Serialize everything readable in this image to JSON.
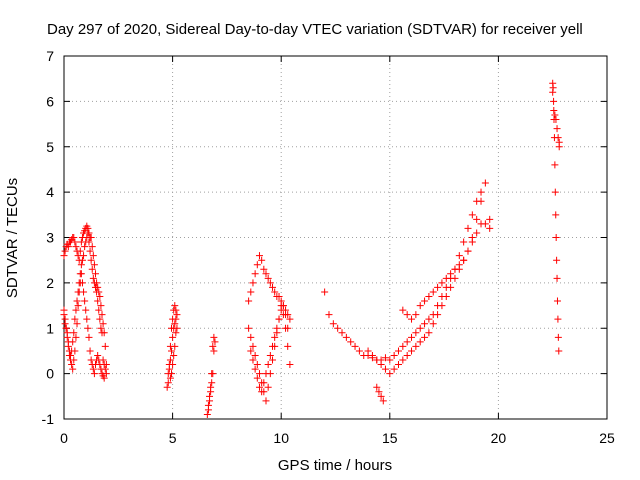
{
  "chart_data": {
    "type": "scatter",
    "title": "Day 297 of 2020, Sidereal Day-to-day VTEC variation (SDTVAR) for receiver yell",
    "xlabel": "GPS time / hours",
    "ylabel": "SDTVAR / TECUs",
    "xlim": [
      0,
      25
    ],
    "ylim": [
      -1,
      7
    ],
    "xticks": [
      0,
      5,
      10,
      15,
      20,
      25
    ],
    "yticks": [
      -1,
      0,
      1,
      2,
      3,
      4,
      5,
      6,
      7
    ],
    "xtick_labels": [
      "0",
      "5",
      "10",
      "15",
      "20",
      "25"
    ],
    "ytick_labels": [
      "-1",
      "0",
      "1",
      "2",
      "3",
      "4",
      "5",
      "6",
      "7"
    ],
    "grid": true,
    "legend": "none",
    "marker": "+",
    "color": "#ff0000",
    "series": [
      {
        "name": "SDTVAR",
        "x": [
          0.0,
          0.05,
          0.1,
          0.15,
          0.2,
          0.25,
          0.3,
          0.35,
          0.4,
          0.45,
          0.5,
          0.55,
          0.6,
          0.65,
          0.7,
          0.75,
          0.8,
          0.85,
          0.9,
          0.95,
          1.0,
          1.05,
          1.1,
          1.15,
          1.2,
          1.25,
          1.3,
          1.35,
          1.4,
          1.45,
          1.5,
          1.55,
          1.6,
          1.65,
          1.7,
          1.75,
          1.8,
          1.85,
          1.9,
          1.95,
          0.0,
          0.05,
          0.1,
          0.15,
          0.2,
          0.25,
          0.3,
          0.35,
          0.4,
          0.45,
          0.5,
          0.55,
          0.6,
          0.65,
          0.7,
          0.75,
          0.8,
          0.85,
          0.9,
          0.95,
          1.0,
          1.05,
          1.1,
          1.15,
          1.2,
          1.25,
          1.3,
          1.35,
          1.4,
          1.45,
          1.5,
          1.55,
          1.6,
          1.65,
          1.7,
          1.75,
          1.8,
          1.85,
          0.0,
          0.05,
          0.1,
          0.15,
          0.2,
          0.25,
          0.3,
          0.35,
          0.4,
          0.45,
          0.5,
          0.55,
          0.6,
          0.65,
          0.7,
          0.75,
          0.8,
          0.85,
          0.9,
          0.95,
          1.0,
          1.05,
          1.1,
          1.15,
          1.2,
          1.25,
          1.3,
          1.35,
          1.4,
          1.45,
          1.5,
          1.55,
          1.6,
          1.65,
          1.7,
          1.75,
          1.8,
          1.85,
          1.9,
          1.95,
          4.75,
          4.8,
          4.85,
          4.9,
          4.95,
          5.0,
          5.05,
          5.1,
          5.15,
          5.2,
          4.8,
          4.85,
          4.9,
          4.95,
          5.0,
          5.05,
          5.1,
          5.15,
          5.2,
          4.9,
          4.95,
          5.0,
          5.05,
          5.1,
          5.15,
          6.6,
          6.65,
          6.7,
          6.75,
          6.8,
          6.85,
          6.9,
          6.95,
          6.65,
          6.7,
          6.75,
          6.8,
          6.85,
          6.9,
          8.5,
          8.6,
          8.7,
          8.8,
          8.9,
          9.0,
          9.1,
          9.2,
          9.3,
          9.4,
          9.5,
          9.6,
          9.7,
          9.8,
          9.9,
          10.0,
          10.1,
          10.2,
          10.3,
          10.4,
          8.5,
          8.6,
          8.7,
          8.8,
          8.9,
          9.0,
          9.1,
          9.2,
          9.3,
          9.4,
          9.5,
          9.6,
          9.7,
          9.8,
          9.9,
          10.0,
          10.1,
          10.2,
          10.3,
          10.4,
          8.6,
          8.7,
          8.8,
          8.9,
          9.0,
          9.1,
          9.2,
          9.3,
          9.4,
          9.5,
          9.6,
          9.7,
          9.8,
          9.9,
          10.0,
          10.1,
          10.2,
          10.3,
          12.0,
          12.2,
          12.4,
          12.6,
          12.8,
          13.0,
          13.2,
          13.4,
          13.6,
          13.8,
          14.0,
          14.2,
          14.4,
          14.6,
          14.8,
          15.0,
          15.2,
          15.4,
          15.6,
          15.8,
          16.0,
          16.2,
          16.4,
          16.6,
          16.8,
          17.0,
          17.2,
          17.4,
          17.6,
          17.8,
          18.0,
          18.2,
          18.4,
          18.6,
          18.8,
          19.0,
          19.2,
          19.4,
          14.0,
          14.2,
          14.4,
          14.6,
          14.8,
          15.0,
          15.2,
          15.4,
          15.6,
          15.8,
          16.0,
          16.2,
          16.4,
          16.6,
          16.8,
          17.0,
          17.2,
          17.4,
          17.6,
          17.8,
          18.0,
          18.2,
          18.4,
          18.6,
          18.8,
          19.0,
          19.2,
          19.4,
          19.6,
          19.6,
          14.4,
          14.5,
          14.6,
          14.7,
          15.6,
          15.8,
          16.0,
          16.2,
          16.4,
          16.6,
          16.8,
          17.0,
          17.2,
          17.4,
          17.6,
          17.8,
          18.0,
          18.2,
          18.4,
          18.6,
          18.8,
          19.0,
          19.2,
          22.5,
          22.52,
          22.54,
          22.56,
          22.58,
          22.6,
          22.62,
          22.64,
          22.66,
          22.68,
          22.7,
          22.72,
          22.74,
          22.76,
          22.78,
          22.8,
          22.5,
          22.55,
          22.6,
          22.65,
          22.7,
          22.75,
          22.8
        ],
        "y": [
          2.6,
          2.7,
          2.8,
          2.85,
          2.8,
          2.9,
          2.9,
          2.95,
          3.0,
          3.0,
          2.9,
          2.8,
          2.7,
          2.6,
          2.5,
          2.7,
          2.9,
          3.0,
          3.1,
          3.15,
          3.2,
          3.25,
          3.2,
          3.1,
          3.0,
          3.0,
          2.8,
          2.6,
          2.4,
          2.2,
          2.0,
          1.9,
          1.8,
          1.7,
          1.5,
          1.3,
          1.1,
          0.9,
          0.6,
          0.2,
          1.4,
          1.2,
          1.0,
          0.8,
          0.6,
          0.4,
          0.3,
          0.2,
          0.1,
          0.3,
          0.5,
          0.8,
          1.1,
          1.5,
          1.8,
          2.0,
          2.2,
          2.0,
          1.8,
          1.6,
          1.4,
          1.2,
          1.0,
          0.8,
          0.5,
          0.3,
          0.2,
          0.1,
          0.0,
          0.2,
          0.3,
          0.4,
          0.3,
          0.2,
          0.1,
          0.0,
          -0.05,
          -0.1,
          1.3,
          1.1,
          1.0,
          0.9,
          0.7,
          0.5,
          0.4,
          0.5,
          0.7,
          0.9,
          1.2,
          1.4,
          1.6,
          1.8,
          2.0,
          2.2,
          2.4,
          2.5,
          2.6,
          2.8,
          2.9,
          3.0,
          3.1,
          2.9,
          2.7,
          2.5,
          2.3,
          2.1,
          2.0,
          1.9,
          1.8,
          1.6,
          1.4,
          1.2,
          1.0,
          0.9,
          0.3,
          0.2,
          0.1,
          0.0,
          -0.3,
          -0.2,
          0.2,
          0.6,
          1.0,
          1.2,
          1.4,
          1.5,
          1.4,
          1.3,
          0.0,
          0.1,
          0.3,
          0.5,
          0.8,
          1.0,
          1.1,
          1.2,
          1.0,
          -0.1,
          0.0,
          0.2,
          0.4,
          0.6,
          0.9,
          -0.9,
          -0.8,
          -0.6,
          -0.4,
          -0.2,
          0.0,
          0.5,
          0.7,
          -0.7,
          -0.5,
          -0.3,
          0.0,
          0.6,
          0.8,
          1.6,
          1.8,
          2.0,
          2.2,
          2.4,
          2.6,
          2.5,
          2.3,
          2.2,
          2.1,
          2.0,
          1.9,
          1.8,
          1.7,
          1.7,
          1.6,
          1.5,
          1.4,
          1.3,
          1.2,
          1.0,
          0.8,
          0.6,
          0.4,
          0.2,
          0.0,
          -0.2,
          -0.4,
          -0.6,
          -0.3,
          0.0,
          0.3,
          0.6,
          0.9,
          1.2,
          1.5,
          1.3,
          1.0,
          0.6,
          0.2,
          0.5,
          0.3,
          0.1,
          -0.1,
          -0.3,
          -0.4,
          -0.2,
          0.0,
          0.2,
          0.4,
          0.6,
          0.8,
          1.0,
          1.2,
          1.4,
          1.5,
          1.3,
          1.0,
          1.8,
          1.3,
          1.1,
          1.0,
          0.9,
          0.8,
          0.7,
          0.6,
          0.5,
          0.4,
          0.4,
          0.35,
          0.3,
          0.3,
          0.35,
          0.3,
          0.4,
          0.5,
          0.6,
          0.7,
          0.8,
          0.9,
          1.0,
          1.1,
          1.2,
          1.3,
          1.5,
          1.7,
          1.9,
          2.1,
          2.3,
          2.6,
          2.9,
          3.2,
          3.5,
          3.8,
          4.0,
          4.2,
          0.5,
          0.4,
          0.3,
          0.2,
          0.1,
          0.0,
          0.1,
          0.2,
          0.3,
          0.4,
          0.5,
          0.6,
          0.7,
          0.8,
          0.9,
          1.1,
          1.3,
          1.5,
          1.7,
          1.9,
          2.1,
          2.3,
          2.5,
          2.7,
          2.9,
          3.1,
          3.3,
          3.3,
          3.2,
          3.4,
          -0.3,
          -0.4,
          -0.5,
          -0.6,
          1.4,
          1.3,
          1.2,
          1.3,
          1.5,
          1.6,
          1.7,
          1.8,
          1.9,
          2.0,
          2.1,
          2.2,
          2.3,
          2.4,
          2.5,
          2.7,
          3.0,
          3.4,
          3.8,
          6.4,
          6.3,
          6.0,
          5.6,
          5.2,
          4.6,
          4.0,
          3.5,
          3.0,
          2.5,
          2.1,
          1.6,
          1.2,
          0.8,
          0.5,
          5.1,
          6.2,
          5.8,
          5.7,
          5.6,
          5.4,
          5.2,
          5.0
        ]
      }
    ]
  }
}
